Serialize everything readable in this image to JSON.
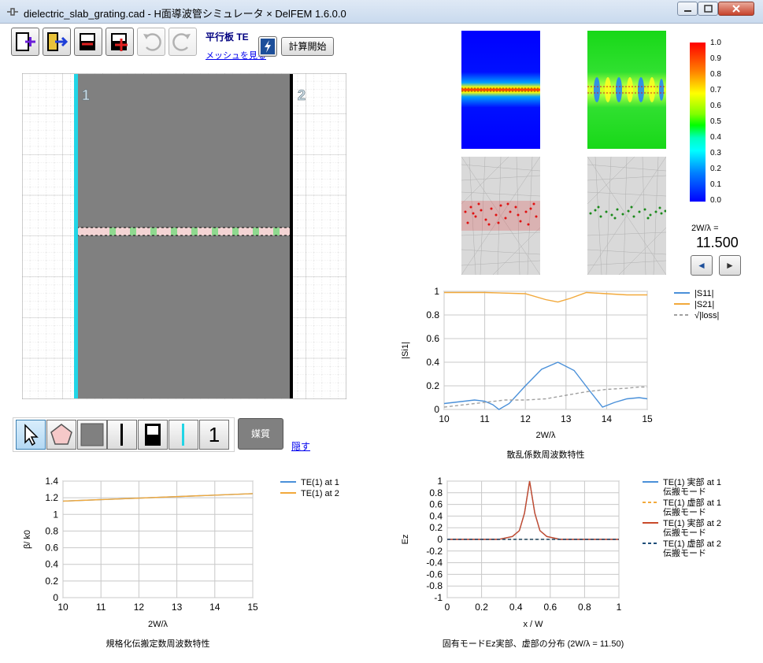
{
  "window": {
    "title": "dielectric_slab_grating.cad - H面導波管シミュレータ  × DelFEM 1.6.0.0"
  },
  "toolbar": {
    "buttons": [
      {
        "name": "new-file-icon"
      },
      {
        "name": "open-file-icon"
      },
      {
        "name": "remove-port-icon"
      },
      {
        "name": "add-port-icon"
      },
      {
        "name": "undo-icon"
      },
      {
        "name": "redo-icon"
      }
    ],
    "mode_label": "平行板 TE",
    "view_mesh_link": "メッシュを見る",
    "run_button": "計算開始"
  },
  "cad": {
    "port_labels": [
      "1",
      "2"
    ]
  },
  "palette": {
    "tools": [
      {
        "name": "select-arrow-icon",
        "active": true
      },
      {
        "name": "polygon-icon"
      },
      {
        "name": "fill-square-icon"
      },
      {
        "name": "port-line-icon"
      },
      {
        "name": "half-fill-square-icon"
      },
      {
        "name": "cyan-line-icon"
      },
      {
        "name": "number-one-icon",
        "text": "1"
      }
    ],
    "media_button": "媒質",
    "hide_link": "隠す"
  },
  "colorbar": {
    "ticks": [
      "1.0",
      "0.9",
      "0.8",
      "0.7",
      "0.6",
      "0.5",
      "0.4",
      "0.3",
      "0.2",
      "0.1",
      "0.0"
    ],
    "ratio_label": "2W/λ =",
    "ratio_value": "11.500",
    "prev_label": "◄",
    "next_label": "►"
  },
  "chart_data": [
    {
      "type": "line",
      "title": "散乱係数周波数特性",
      "xlabel": "2W/λ",
      "ylabel": "|Si1|",
      "xlim": [
        10,
        15
      ],
      "ylim": [
        0,
        1
      ],
      "xticks": [
        "10",
        "11",
        "12",
        "13",
        "14",
        "15"
      ],
      "yticks": [
        "0",
        "0.2",
        "0.4",
        "0.6",
        "0.8",
        "1"
      ],
      "legend": "top-right",
      "series": [
        {
          "name": "|S11|",
          "color": "#4a90d9",
          "x": [
            10,
            10.25,
            10.5,
            10.75,
            11,
            11.2,
            11.35,
            11.6,
            12,
            12.4,
            12.8,
            13.2,
            13.6,
            13.9,
            14.2,
            14.5,
            14.8,
            15
          ],
          "values": [
            0.05,
            0.06,
            0.07,
            0.08,
            0.07,
            0.04,
            0.0,
            0.05,
            0.2,
            0.34,
            0.4,
            0.33,
            0.15,
            0.02,
            0.06,
            0.09,
            0.1,
            0.09
          ]
        },
        {
          "name": "|S21|",
          "color": "#f2a93b",
          "x": [
            10,
            11,
            12,
            12.5,
            12.8,
            13.1,
            13.5,
            14,
            14.5,
            15
          ],
          "values": [
            0.99,
            0.99,
            0.98,
            0.93,
            0.91,
            0.94,
            0.99,
            0.98,
            0.97,
            0.97
          ]
        },
        {
          "name": "√|loss|",
          "color": "#a0a0a0",
          "dashed": true,
          "x": [
            10,
            10.5,
            11,
            11.5,
            12,
            12.5,
            13,
            13.5,
            14,
            14.5,
            14.8,
            15
          ],
          "values": [
            0.02,
            0.04,
            0.06,
            0.08,
            0.08,
            0.09,
            0.12,
            0.15,
            0.17,
            0.18,
            0.19,
            0.19
          ]
        }
      ]
    },
    {
      "type": "line",
      "title": "規格化伝搬定数周波数特性",
      "xlabel": "2W/λ",
      "ylabel": "β/ k0",
      "xlim": [
        10,
        15
      ],
      "ylim": [
        0,
        1.4
      ],
      "xticks": [
        "10",
        "11",
        "12",
        "13",
        "14",
        "15"
      ],
      "yticks": [
        "0",
        "0.2",
        "0.4",
        "0.6",
        "0.8",
        "1",
        "1.2",
        "1.4"
      ],
      "legend": "top-right",
      "series": [
        {
          "name": "TE(1) at 1",
          "color": "#4a90d9",
          "x": [
            10,
            15
          ],
          "values": [
            1.16,
            1.25
          ]
        },
        {
          "name": "TE(1) at 2",
          "color": "#f2a93b",
          "x": [
            10,
            15
          ],
          "values": [
            1.16,
            1.25
          ]
        }
      ]
    },
    {
      "type": "line",
      "title": "固有モードEz実部、虚部の分布 (2W/λ = 11.50)",
      "xlabel": "x / W",
      "ylabel": "Ez",
      "xlim": [
        0,
        1
      ],
      "ylim": [
        -1,
        1
      ],
      "xticks": [
        "0",
        "0.2",
        "0.4",
        "0.6",
        "0.8",
        "1"
      ],
      "yticks": [
        "1",
        "0.8",
        "0.6",
        "0.4",
        "0.2",
        "0",
        "-0.2",
        "-0.4",
        "-0.6",
        "-0.8",
        "-1"
      ],
      "legend": "top-right",
      "series": [
        {
          "name": "TE(1) 実部 at 1 伝搬モード",
          "color": "#4a90d9",
          "x": [
            0,
            0.3,
            0.38,
            0.42,
            0.45,
            0.48,
            0.51,
            0.54,
            0.58,
            0.66,
            1
          ],
          "values": [
            0,
            0.0,
            0.05,
            0.15,
            0.45,
            1.0,
            0.45,
            0.15,
            0.05,
            0.0,
            0
          ]
        },
        {
          "name": "TE(1) 虚部 at 1 伝搬モード",
          "color": "#f2a93b",
          "dashed": true,
          "x": [
            0,
            1
          ],
          "values": [
            0,
            0
          ]
        },
        {
          "name": "TE(1) 実部 at 2 伝搬モード",
          "color": "#c94a2a",
          "x": [
            0,
            0.3,
            0.38,
            0.42,
            0.45,
            0.48,
            0.51,
            0.54,
            0.58,
            0.66,
            1
          ],
          "values": [
            0,
            0.0,
            0.05,
            0.15,
            0.45,
            1.0,
            0.45,
            0.15,
            0.05,
            0.0,
            0
          ]
        },
        {
          "name": "TE(1) 虚部 at 2 伝搬モード",
          "color": "#1f4e79",
          "dashed": true,
          "x": [
            0,
            1
          ],
          "values": [
            0,
            0
          ]
        }
      ]
    }
  ]
}
